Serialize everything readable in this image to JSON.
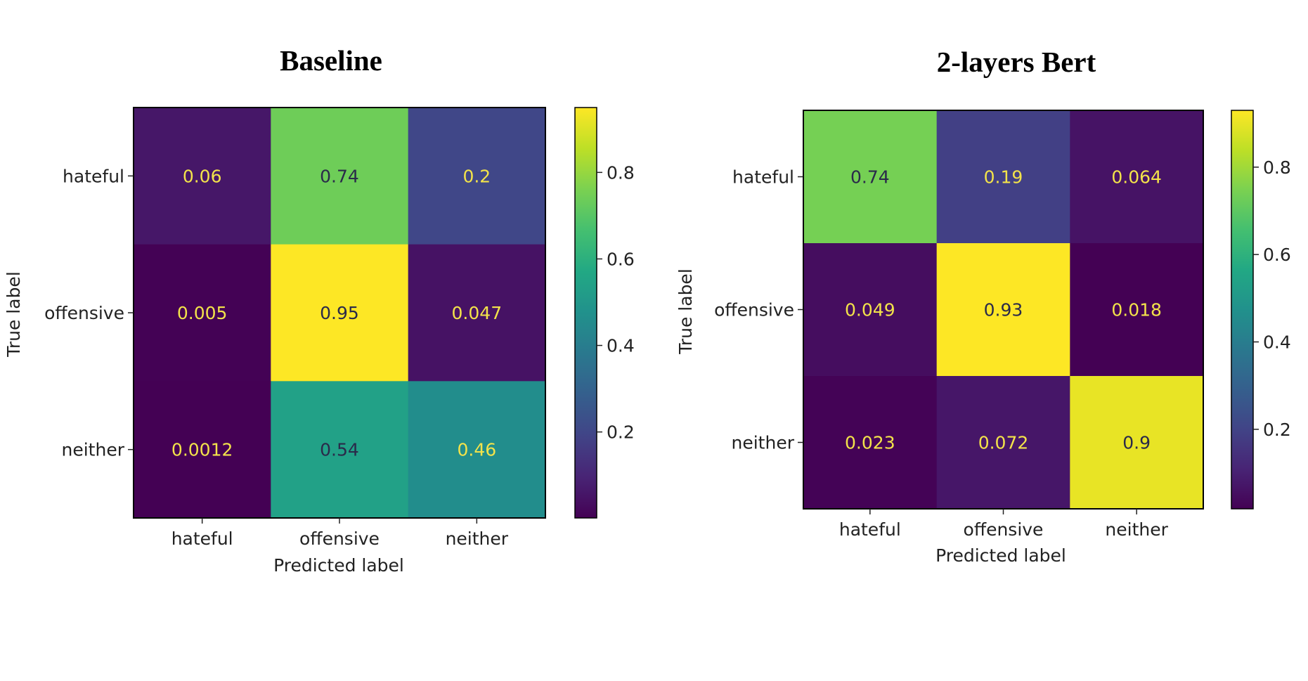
{
  "chart_data": [
    {
      "type": "heatmap",
      "title": "Baseline",
      "xlabel": "Predicted label",
      "ylabel": "True label",
      "x_categories": [
        "hateful",
        "offensive",
        "neither"
      ],
      "y_categories": [
        "hateful",
        "offensive",
        "neither"
      ],
      "values": [
        [
          0.06,
          0.74,
          0.2
        ],
        [
          0.005,
          0.95,
          0.047
        ],
        [
          0.0012,
          0.54,
          0.46
        ]
      ],
      "value_labels": [
        [
          "0.06",
          "0.74",
          "0.2"
        ],
        [
          "0.005",
          "0.95",
          "0.047"
        ],
        [
          "0.0012",
          "0.54",
          "0.46"
        ]
      ],
      "colorscale": "viridis",
      "vmin": 0.0012,
      "vmax": 0.95,
      "colorbar_ticks": [
        0.2,
        0.4,
        0.6,
        0.8
      ],
      "colorbar_tick_labels": [
        "0.2",
        "0.4",
        "0.6",
        "0.8"
      ]
    },
    {
      "type": "heatmap",
      "title": "2-layers Bert",
      "xlabel": "Predicted label",
      "ylabel": "True label",
      "x_categories": [
        "hateful",
        "offensive",
        "neither"
      ],
      "y_categories": [
        "hateful",
        "offensive",
        "neither"
      ],
      "values": [
        [
          0.74,
          0.19,
          0.064
        ],
        [
          0.049,
          0.93,
          0.018
        ],
        [
          0.023,
          0.072,
          0.9
        ]
      ],
      "value_labels": [
        [
          "0.74",
          "0.19",
          "0.064"
        ],
        [
          "0.049",
          "0.93",
          "0.018"
        ],
        [
          "0.023",
          "0.072",
          "0.9"
        ]
      ],
      "colorscale": "viridis",
      "vmin": 0.018,
      "vmax": 0.93,
      "colorbar_ticks": [
        0.2,
        0.4,
        0.6,
        0.8
      ],
      "colorbar_tick_labels": [
        "0.2",
        "0.4",
        "0.6",
        "0.8"
      ]
    }
  ]
}
